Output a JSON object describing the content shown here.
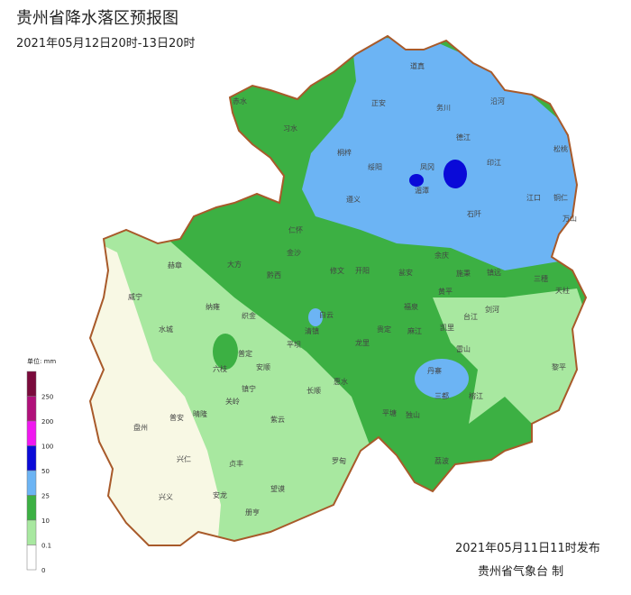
{
  "header": {
    "title": "贵州省降水落区预报图",
    "subtitle": "2021年05月12日20时-13日20时"
  },
  "legend": {
    "unit": "单位: mm",
    "colors": [
      "#7a0a3c",
      "#b0107a",
      "#f018f0",
      "#0a0ad8",
      "#6cb4f4",
      "#3cb043",
      "#a8e8a0",
      "#ffffff"
    ],
    "ticks": [
      250,
      200,
      100,
      50,
      25,
      10,
      0.1,
      0
    ]
  },
  "places": [
    "道真",
    "正安",
    "务川",
    "沿河",
    "赤水",
    "习水",
    "桐梓",
    "德江",
    "松桃",
    "绥阳",
    "凤冈",
    "印江",
    "湄潭",
    "遵义",
    "江口",
    "铜仁",
    "石阡",
    "万山",
    "仁怀",
    "金沙",
    "大方",
    "赫章",
    "黔西",
    "修文",
    "开阳",
    "瓮安",
    "余庆",
    "施秉",
    "镇远",
    "三穗",
    "天柱",
    "黄平",
    "威宁",
    "纳雍",
    "织金",
    "白云",
    "福泉",
    "剑河",
    "台江",
    "水城",
    "清镇",
    "平坝",
    "龙里",
    "贵定",
    "麻江",
    "雷山",
    "凯里",
    "普定",
    "安顺",
    "六枝",
    "镇宁",
    "长顺",
    "惠水",
    "丹寨",
    "黎平",
    "榕江",
    "三都",
    "关岭",
    "晴隆",
    "普安",
    "盘州",
    "紫云",
    "平塘",
    "独山",
    "兴仁",
    "贞丰",
    "罗甸",
    "荔波",
    "望谟",
    "安龙",
    "兴义",
    "册亨"
  ],
  "footer": {
    "issued": "2021年05月11日11时发布",
    "agency": "贵州省气象台 制"
  }
}
